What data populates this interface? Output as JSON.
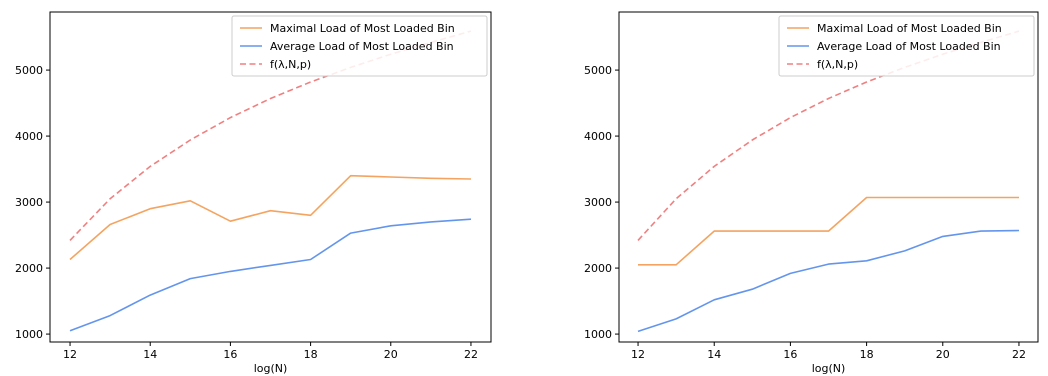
{
  "chart_data": [
    {
      "type": "line",
      "title": "",
      "xlabel": "log(N)",
      "ylabel": "",
      "xlim": [
        11.5,
        22.5
      ],
      "ylim": [
        880,
        5880
      ],
      "xticks": [
        12,
        14,
        16,
        18,
        20,
        22
      ],
      "yticks": [
        1000,
        2000,
        3000,
        4000,
        5000
      ],
      "grid": false,
      "legend_position": "top-right",
      "series": [
        {
          "name": "Maximal Load of Most Loaded Bin",
          "color": "#f4a460",
          "style": "solid",
          "x": [
            12,
            13,
            14,
            15,
            16,
            17,
            18,
            19,
            20,
            21,
            22
          ],
          "y": [
            2130,
            2660,
            2900,
            3020,
            2710,
            2870,
            2800,
            3400,
            3380,
            3360,
            3350
          ]
        },
        {
          "name": "Average Load of Most Loaded Bin",
          "color": "#6495ed",
          "style": "solid",
          "x": [
            12,
            13,
            14,
            15,
            16,
            17,
            18,
            19,
            20,
            21,
            22
          ],
          "y": [
            1050,
            1280,
            1590,
            1840,
            1950,
            2040,
            2130,
            2530,
            2640,
            2700,
            2740
          ]
        },
        {
          "name": "f(λ,N,p)",
          "color": "#f08080",
          "style": "dashed",
          "x": [
            12,
            13,
            14,
            15,
            16,
            17,
            18,
            19,
            20,
            21,
            22
          ],
          "y": [
            2420,
            3050,
            3540,
            3940,
            4280,
            4570,
            4820,
            5040,
            5240,
            5420,
            5590
          ]
        }
      ]
    },
    {
      "type": "line",
      "title": "",
      "xlabel": "log(N)",
      "ylabel": "",
      "xlim": [
        11.5,
        22.5
      ],
      "ylim": [
        880,
        5880
      ],
      "xticks": [
        12,
        14,
        16,
        18,
        20,
        22
      ],
      "yticks": [
        1000,
        2000,
        3000,
        4000,
        5000
      ],
      "grid": false,
      "legend_position": "top-right",
      "series": [
        {
          "name": "Maximal Load of Most Loaded Bin",
          "color": "#f4a460",
          "style": "solid",
          "x": [
            12,
            13,
            14,
            15,
            16,
            17,
            18,
            19,
            20,
            21,
            22
          ],
          "y": [
            2050,
            2050,
            2560,
            2560,
            2560,
            2560,
            3070,
            3070,
            3070,
            3070,
            3070
          ]
        },
        {
          "name": "Average Load of Most Loaded Bin",
          "color": "#6495ed",
          "style": "solid",
          "x": [
            12,
            13,
            14,
            15,
            16,
            17,
            18,
            19,
            20,
            21,
            22
          ],
          "y": [
            1040,
            1230,
            1520,
            1680,
            1920,
            2060,
            2110,
            2260,
            2480,
            2560,
            2570
          ]
        },
        {
          "name": "f(λ,N,p)",
          "color": "#f08080",
          "style": "dashed",
          "x": [
            12,
            13,
            14,
            15,
            16,
            17,
            18,
            19,
            20,
            21,
            22
          ],
          "y": [
            2420,
            3050,
            3540,
            3940,
            4280,
            4570,
            4820,
            5040,
            5240,
            5420,
            5590
          ]
        }
      ]
    }
  ]
}
